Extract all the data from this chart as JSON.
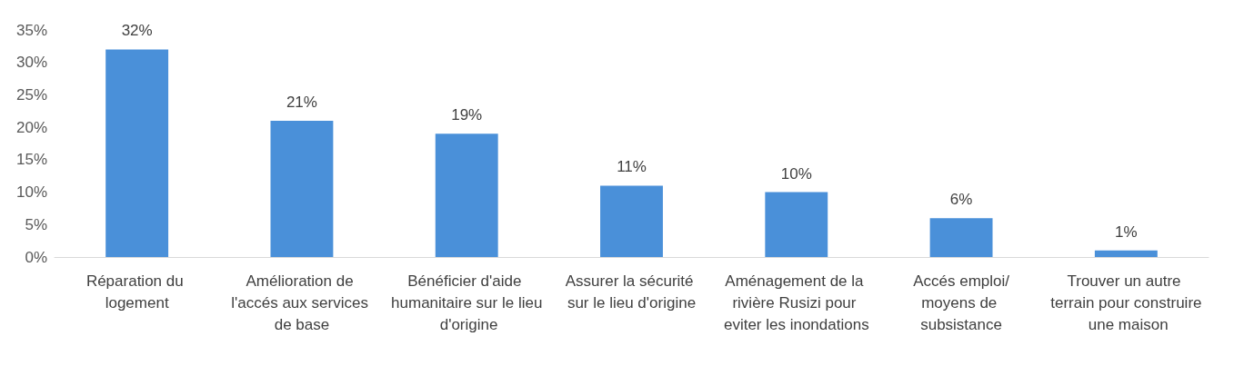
{
  "chart_data": {
    "type": "bar",
    "categories": [
      "Réparation du logement",
      "Amélioration de l'accés aux services de base",
      "Bénéficier d'aide humanitaire sur le lieu d'origine",
      "Assurer la sécurité sur le lieu d'origine",
      "Aménagement de la rivière Rusizi pour eviter les inondations",
      "Accés emploi/moyens de subsistance",
      "Trouver un autre terrain pour construire une maison"
    ],
    "values": [
      32,
      21,
      19,
      11,
      10,
      6,
      1
    ],
    "value_labels": [
      "32%",
      "21%",
      "19%",
      "11%",
      "10%",
      "6%",
      "1%"
    ],
    "color": "#4a90d9",
    "ylim": [
      0,
      35
    ],
    "yticks": [
      {
        "value": 0,
        "label": "0%"
      },
      {
        "value": 5,
        "label": "5%"
      },
      {
        "value": 10,
        "label": "10%"
      },
      {
        "value": 15,
        "label": "15%"
      },
      {
        "value": 20,
        "label": "20%"
      },
      {
        "value": 25,
        "label": "25%"
      },
      {
        "value": 30,
        "label": "30%"
      },
      {
        "value": 35,
        "label": "35%"
      }
    ],
    "grid": false
  }
}
